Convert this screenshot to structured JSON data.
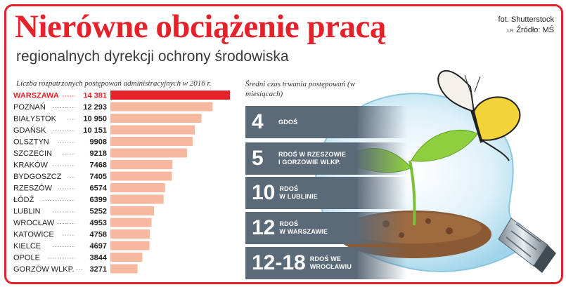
{
  "header": {
    "title": "Nierówne obciążenie pracą",
    "subtitle": "regionalnych dyrekcji ochrony środowiska",
    "photo_credit": "fot. Shutterstock",
    "lr_mark": "ŁR",
    "source": "Źródło: MŚ"
  },
  "colors": {
    "accent": "#e3222b",
    "bar": "#f7b8a0",
    "bar_highlight": "#e3222b",
    "panel": "#5b6a78"
  },
  "chart_data": {
    "type": "bar",
    "orientation": "horizontal",
    "title": "Liczba rozpatrzonych postępowań administracyjnych w 2016 r.",
    "categories": [
      "WARSZAWA",
      "POZNAŃ",
      "BIAŁYSTOK",
      "GDAŃSK",
      "OLSZTYN",
      "SZCZECIN",
      "KRAKÓW",
      "BYDGOSZCZ",
      "RZESZÓW",
      "ŁÓDŹ",
      "LUBLIN",
      "WROCŁAW",
      "KATOWICE",
      "KIELCE",
      "OPOLE",
      "GORZÓW WLKP."
    ],
    "values": [
      14381,
      12293,
      10950,
      10151,
      9908,
      9218,
      7468,
      7405,
      6574,
      6399,
      5252,
      4953,
      4758,
      4697,
      3844,
      3271
    ],
    "value_labels": [
      "14 381",
      "12 293",
      "10 950",
      "10 151",
      "9908",
      "9218",
      "7468",
      "7405",
      "6574",
      "6399",
      "5252",
      "4953",
      "4758",
      "4697",
      "3844",
      "3271"
    ],
    "highlight": "WARSZAWA",
    "xlim": [
      0,
      14381
    ]
  },
  "durations": {
    "caption": "Średni czas trwania postępowań (w miesiącach)",
    "items": [
      {
        "value": "4",
        "label_lines": [
          "GDOŚ"
        ]
      },
      {
        "value": "5",
        "label_lines": [
          "RDOŚ W RZESZOWIE",
          "I GORZOWIE WLKP."
        ]
      },
      {
        "value": "10",
        "label_lines": [
          "RDOŚ",
          "W LUBLINIE"
        ]
      },
      {
        "value": "12",
        "label_lines": [
          "RDOŚ",
          "W WARSZAWIE"
        ]
      },
      {
        "value": "12-18",
        "label_lines": [
          "RDOŚ WE",
          "WROCŁAWIU"
        ]
      }
    ]
  }
}
